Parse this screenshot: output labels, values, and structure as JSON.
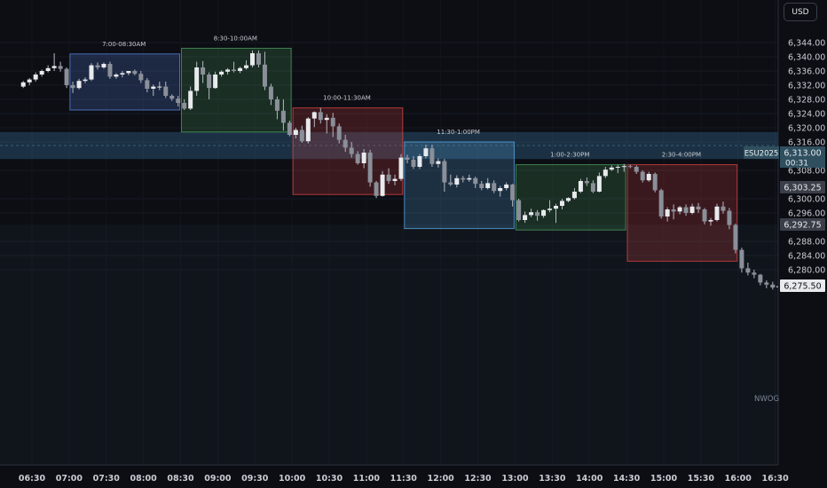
{
  "currency_button": "USD",
  "chart_data": {
    "type": "candlestick",
    "instrument": "ESU2025",
    "last_price": "6,313.00",
    "countdown": "00:31",
    "y_range": [
      6273,
      6348
    ],
    "y_ticks": [
      "6,344.00",
      "6,340.00",
      "6,336.00",
      "6,332.00",
      "6,328.00",
      "6,324.00",
      "6,320.00",
      "6,316.00",
      "6,308.00",
      "6,300.00",
      "6,296.00",
      "6,288.00",
      "6,284.00",
      "6,280.00"
    ],
    "x_ticks": [
      "06:30",
      "07:00",
      "07:30",
      "08:00",
      "08:30",
      "09:00",
      "09:30",
      "10:00",
      "10:30",
      "11:00",
      "11:30",
      "12:00",
      "12:30",
      "13:00",
      "13:30",
      "14:00",
      "14:30",
      "15:00",
      "15:30",
      "16:00",
      "16:30"
    ],
    "price_badges": [
      "6,303.25",
      "6,292.75",
      "6,275.50"
    ],
    "zone_label": "NWOG",
    "zone_range": [
      6311.2,
      6318.8
    ],
    "sessions": [
      {
        "label": "7:00-08:30AM",
        "start": "07:00",
        "end": "08:30",
        "high": 6340.8,
        "low": 6325.0,
        "color": "#5a88e8"
      },
      {
        "label": "8:30-10:00AM",
        "start": "08:30",
        "end": "10:00",
        "high": 6342.4,
        "low": 6318.8,
        "color": "#4fa35e"
      },
      {
        "label": "10:00-11:30AM",
        "start": "10:00",
        "end": "11:30",
        "high": 6325.6,
        "low": 6301.2,
        "color": "#e04545"
      },
      {
        "label": "11:30-1:00PM",
        "start": "11:30",
        "end": "13:00",
        "high": 6316.0,
        "low": 6291.6,
        "color": "#5aaee8"
      },
      {
        "label": "1:00-2:30PM",
        "start": "13:00",
        "end": "14:30",
        "high": 6309.6,
        "low": 6291.2,
        "color": "#4fa35e"
      },
      {
        "label": "2:30-4:00PM",
        "start": "14:30",
        "end": "16:00",
        "high": 6309.6,
        "low": 6282.4,
        "color": "#e04545"
      }
    ],
    "candles": [
      {
        "t": "06:23",
        "o": 6331.6,
        "h": 6333.2,
        "c": 6332.8,
        "l": 6331.2
      },
      {
        "t": "06:28",
        "o": 6332.8,
        "h": 6334.0,
        "c": 6333.6,
        "l": 6332.0
      },
      {
        "t": "06:33",
        "o": 6333.6,
        "h": 6335.6,
        "c": 6335.0,
        "l": 6333.0
      },
      {
        "t": "06:38",
        "o": 6335.0,
        "h": 6336.4,
        "c": 6336.0,
        "l": 6334.4
      },
      {
        "t": "06:43",
        "o": 6336.0,
        "h": 6337.6,
        "c": 6336.8,
        "l": 6335.6
      },
      {
        "t": "06:48",
        "o": 6336.8,
        "h": 6341.0,
        "c": 6337.4,
        "l": 6336.0
      },
      {
        "t": "06:53",
        "o": 6337.4,
        "h": 6338.6,
        "c": 6336.6,
        "l": 6335.8
      },
      {
        "t": "06:58",
        "o": 6336.6,
        "h": 6337.0,
        "c": 6332.0,
        "l": 6331.2
      },
      {
        "t": "07:03",
        "o": 6332.0,
        "h": 6333.0,
        "c": 6331.2,
        "l": 6329.8
      },
      {
        "t": "07:08",
        "o": 6331.2,
        "h": 6333.8,
        "c": 6333.2,
        "l": 6330.8
      },
      {
        "t": "07:13",
        "o": 6333.2,
        "h": 6334.2,
        "c": 6333.6,
        "l": 6332.6
      },
      {
        "t": "07:18",
        "o": 6333.6,
        "h": 6338.2,
        "c": 6337.6,
        "l": 6333.2
      },
      {
        "t": "07:23",
        "o": 6337.6,
        "h": 6338.4,
        "c": 6337.0,
        "l": 6336.4
      },
      {
        "t": "07:28",
        "o": 6337.0,
        "h": 6338.4,
        "c": 6338.0,
        "l": 6336.6
      },
      {
        "t": "07:33",
        "o": 6338.0,
        "h": 6338.6,
        "c": 6334.4,
        "l": 6333.8
      },
      {
        "t": "07:38",
        "o": 6334.4,
        "h": 6335.4,
        "c": 6335.0,
        "l": 6333.8
      },
      {
        "t": "07:43",
        "o": 6335.0,
        "h": 6336.0,
        "c": 6335.4,
        "l": 6334.2
      },
      {
        "t": "07:48",
        "o": 6335.4,
        "h": 6336.0,
        "c": 6336.0,
        "l": 6334.8
      },
      {
        "t": "07:53",
        "o": 6336.0,
        "h": 6336.4,
        "c": 6335.2,
        "l": 6334.8
      },
      {
        "t": "07:58",
        "o": 6335.2,
        "h": 6336.0,
        "c": 6333.4,
        "l": 6332.6
      },
      {
        "t": "08:03",
        "o": 6333.4,
        "h": 6334.0,
        "c": 6331.0,
        "l": 6330.0
      },
      {
        "t": "08:08",
        "o": 6331.0,
        "h": 6332.2,
        "c": 6331.6,
        "l": 6329.0
      },
      {
        "t": "08:13",
        "o": 6331.6,
        "h": 6333.0,
        "c": 6331.6,
        "l": 6330.6
      },
      {
        "t": "08:18",
        "o": 6331.6,
        "h": 6333.0,
        "c": 6329.0,
        "l": 6328.4
      },
      {
        "t": "08:23",
        "o": 6329.0,
        "h": 6329.4,
        "c": 6328.2,
        "l": 6327.6
      },
      {
        "t": "08:28",
        "o": 6328.2,
        "h": 6329.0,
        "c": 6327.0,
        "l": 6326.0
      },
      {
        "t": "08:33",
        "o": 6327.0,
        "h": 6328.0,
        "c": 6325.4,
        "l": 6325.0
      },
      {
        "t": "08:38",
        "o": 6325.4,
        "h": 6331.6,
        "c": 6330.4,
        "l": 6325.0
      },
      {
        "t": "08:43",
        "o": 6330.4,
        "h": 6338.6,
        "c": 6337.0,
        "l": 6329.0
      },
      {
        "t": "08:48",
        "o": 6337.0,
        "h": 6338.8,
        "c": 6335.0,
        "l": 6332.6
      },
      {
        "t": "08:53",
        "o": 6335.0,
        "h": 6335.6,
        "c": 6331.2,
        "l": 6328.0
      },
      {
        "t": "08:58",
        "o": 6331.2,
        "h": 6335.8,
        "c": 6335.0,
        "l": 6331.0
      },
      {
        "t": "09:03",
        "o": 6335.0,
        "h": 6336.2,
        "c": 6335.8,
        "l": 6334.4
      },
      {
        "t": "09:08",
        "o": 6335.8,
        "h": 6336.8,
        "c": 6336.4,
        "l": 6335.0
      },
      {
        "t": "09:13",
        "o": 6336.4,
        "h": 6338.6,
        "c": 6336.0,
        "l": 6335.6
      },
      {
        "t": "09:18",
        "o": 6336.0,
        "h": 6337.2,
        "c": 6336.8,
        "l": 6335.4
      },
      {
        "t": "09:23",
        "o": 6336.8,
        "h": 6339.0,
        "c": 6337.6,
        "l": 6336.4
      },
      {
        "t": "09:28",
        "o": 6337.6,
        "h": 6341.8,
        "c": 6341.0,
        "l": 6337.0
      },
      {
        "t": "09:33",
        "o": 6341.0,
        "h": 6341.8,
        "c": 6337.8,
        "l": 6337.0
      },
      {
        "t": "09:38",
        "o": 6337.8,
        "h": 6341.4,
        "c": 6331.6,
        "l": 6330.6
      },
      {
        "t": "09:43",
        "o": 6331.6,
        "h": 6332.4,
        "c": 6328.0,
        "l": 6326.4
      },
      {
        "t": "09:48",
        "o": 6328.0,
        "h": 6328.8,
        "c": 6324.8,
        "l": 6322.4
      },
      {
        "t": "09:53",
        "o": 6324.8,
        "h": 6328.0,
        "c": 6321.4,
        "l": 6319.2
      },
      {
        "t": "09:58",
        "o": 6321.4,
        "h": 6322.0,
        "c": 6318.0,
        "l": 6317.6
      },
      {
        "t": "10:03",
        "o": 6318.0,
        "h": 6320.0,
        "c": 6319.4,
        "l": 6317.0
      },
      {
        "t": "10:08",
        "o": 6319.4,
        "h": 6320.6,
        "c": 6316.2,
        "l": 6315.8
      },
      {
        "t": "10:13",
        "o": 6316.2,
        "h": 6323.0,
        "c": 6322.6,
        "l": 6315.6
      },
      {
        "t": "10:18",
        "o": 6322.6,
        "h": 6324.6,
        "c": 6324.4,
        "l": 6320.2
      },
      {
        "t": "10:23",
        "o": 6324.4,
        "h": 6325.6,
        "c": 6322.2,
        "l": 6321.2
      },
      {
        "t": "10:28",
        "o": 6322.2,
        "h": 6323.8,
        "c": 6322.8,
        "l": 6318.4
      },
      {
        "t": "10:33",
        "o": 6322.8,
        "h": 6324.2,
        "c": 6320.4,
        "l": 6317.4
      },
      {
        "t": "10:38",
        "o": 6320.4,
        "h": 6321.2,
        "c": 6316.6,
        "l": 6315.6
      },
      {
        "t": "10:43",
        "o": 6316.6,
        "h": 6318.0,
        "c": 6314.4,
        "l": 6313.2
      },
      {
        "t": "10:48",
        "o": 6314.4,
        "h": 6316.0,
        "c": 6312.6,
        "l": 6311.6
      },
      {
        "t": "10:53",
        "o": 6312.6,
        "h": 6313.4,
        "c": 6310.0,
        "l": 6309.6
      },
      {
        "t": "10:58",
        "o": 6310.0,
        "h": 6314.0,
        "c": 6313.0,
        "l": 6308.6
      },
      {
        "t": "11:03",
        "o": 6313.0,
        "h": 6313.8,
        "c": 6304.6,
        "l": 6303.4
      },
      {
        "t": "11:08",
        "o": 6304.6,
        "h": 6305.0,
        "c": 6300.8,
        "l": 6300.2
      },
      {
        "t": "11:13",
        "o": 6300.8,
        "h": 6307.8,
        "c": 6306.8,
        "l": 6300.6
      },
      {
        "t": "11:18",
        "o": 6306.8,
        "h": 6308.6,
        "c": 6305.0,
        "l": 6304.2
      },
      {
        "t": "11:23",
        "o": 6305.0,
        "h": 6306.8,
        "c": 6305.6,
        "l": 6303.8
      },
      {
        "t": "11:28",
        "o": 6305.6,
        "h": 6312.6,
        "c": 6311.6,
        "l": 6305.0
      },
      {
        "t": "11:33",
        "o": 6311.6,
        "h": 6312.4,
        "c": 6311.0,
        "l": 6310.0
      },
      {
        "t": "11:38",
        "o": 6311.0,
        "h": 6312.0,
        "c": 6309.0,
        "l": 6308.4
      },
      {
        "t": "11:43",
        "o": 6309.0,
        "h": 6312.6,
        "c": 6312.0,
        "l": 6308.4
      },
      {
        "t": "11:48",
        "o": 6312.0,
        "h": 6315.2,
        "c": 6314.2,
        "l": 6311.4
      },
      {
        "t": "11:53",
        "o": 6314.2,
        "h": 6315.2,
        "c": 6309.8,
        "l": 6309.0
      },
      {
        "t": "11:58",
        "o": 6309.8,
        "h": 6311.4,
        "c": 6310.6,
        "l": 6308.8
      },
      {
        "t": "12:03",
        "o": 6310.6,
        "h": 6311.2,
        "c": 6304.6,
        "l": 6302.0
      },
      {
        "t": "12:08",
        "o": 6304.6,
        "h": 6306.8,
        "c": 6304.0,
        "l": 6303.6
      },
      {
        "t": "12:13",
        "o": 6304.0,
        "h": 6306.6,
        "c": 6305.8,
        "l": 6303.2
      },
      {
        "t": "12:18",
        "o": 6305.8,
        "h": 6306.4,
        "c": 6305.4,
        "l": 6304.6
      },
      {
        "t": "12:23",
        "o": 6305.4,
        "h": 6306.8,
        "c": 6305.8,
        "l": 6304.8
      },
      {
        "t": "12:28",
        "o": 6305.8,
        "h": 6306.2,
        "c": 6304.2,
        "l": 6303.0
      },
      {
        "t": "12:33",
        "o": 6304.2,
        "h": 6305.0,
        "c": 6303.0,
        "l": 6302.4
      },
      {
        "t": "12:38",
        "o": 6303.0,
        "h": 6305.8,
        "c": 6304.4,
        "l": 6302.6
      },
      {
        "t": "12:43",
        "o": 6304.4,
        "h": 6305.2,
        "c": 6302.2,
        "l": 6301.6
      },
      {
        "t": "12:48",
        "o": 6302.2,
        "h": 6303.6,
        "c": 6303.0,
        "l": 6300.6
      },
      {
        "t": "12:53",
        "o": 6303.0,
        "h": 6304.6,
        "c": 6304.0,
        "l": 6302.4
      },
      {
        "t": "12:58",
        "o": 6304.0,
        "h": 6304.2,
        "c": 6299.6,
        "l": 6297.8
      },
      {
        "t": "13:03",
        "o": 6299.6,
        "h": 6300.0,
        "c": 6294.0,
        "l": 6293.6
      },
      {
        "t": "13:08",
        "o": 6294.0,
        "h": 6296.4,
        "c": 6295.4,
        "l": 6293.2
      },
      {
        "t": "13:13",
        "o": 6295.4,
        "h": 6297.2,
        "c": 6296.2,
        "l": 6294.8
      },
      {
        "t": "13:18",
        "o": 6296.2,
        "h": 6296.8,
        "c": 6295.2,
        "l": 6293.8
      },
      {
        "t": "13:23",
        "o": 6295.2,
        "h": 6297.0,
        "c": 6296.8,
        "l": 6294.6
      },
      {
        "t": "13:28",
        "o": 6296.8,
        "h": 6299.6,
        "c": 6297.2,
        "l": 6296.2
      },
      {
        "t": "13:33",
        "o": 6297.2,
        "h": 6298.6,
        "c": 6298.0,
        "l": 6293.2
      },
      {
        "t": "13:38",
        "o": 6298.0,
        "h": 6300.0,
        "c": 6299.4,
        "l": 6297.0
      },
      {
        "t": "13:43",
        "o": 6299.4,
        "h": 6300.4,
        "c": 6300.2,
        "l": 6299.0
      },
      {
        "t": "13:48",
        "o": 6300.2,
        "h": 6303.0,
        "c": 6302.0,
        "l": 6299.8
      },
      {
        "t": "13:53",
        "o": 6302.0,
        "h": 6305.6,
        "c": 6305.0,
        "l": 6301.6
      },
      {
        "t": "13:58",
        "o": 6305.0,
        "h": 6306.0,
        "c": 6304.4,
        "l": 6303.6
      },
      {
        "t": "14:03",
        "o": 6304.4,
        "h": 6305.2,
        "c": 6302.0,
        "l": 6301.6
      },
      {
        "t": "14:08",
        "o": 6302.0,
        "h": 6307.4,
        "c": 6306.4,
        "l": 6301.8
      },
      {
        "t": "14:13",
        "o": 6306.4,
        "h": 6309.0,
        "c": 6308.2,
        "l": 6305.8
      },
      {
        "t": "14:18",
        "o": 6308.2,
        "h": 6309.4,
        "c": 6308.8,
        "l": 6307.8
      },
      {
        "t": "14:23",
        "o": 6308.8,
        "h": 6309.6,
        "c": 6309.0,
        "l": 6307.2
      },
      {
        "t": "14:28",
        "o": 6309.0,
        "h": 6309.8,
        "c": 6309.2,
        "l": 6307.6
      },
      {
        "t": "14:33",
        "o": 6309.2,
        "h": 6309.6,
        "c": 6309.0,
        "l": 6308.6
      },
      {
        "t": "14:38",
        "o": 6309.0,
        "h": 6309.4,
        "c": 6307.6,
        "l": 6307.0
      },
      {
        "t": "14:43",
        "o": 6307.6,
        "h": 6308.0,
        "c": 6305.2,
        "l": 6304.6
      },
      {
        "t": "14:48",
        "o": 6305.2,
        "h": 6307.6,
        "c": 6307.0,
        "l": 6304.8
      },
      {
        "t": "14:53",
        "o": 6307.0,
        "h": 6307.4,
        "c": 6302.4,
        "l": 6301.8
      },
      {
        "t": "14:58",
        "o": 6302.4,
        "h": 6302.8,
        "c": 6295.0,
        "l": 6294.4
      },
      {
        "t": "15:03",
        "o": 6295.0,
        "h": 6297.6,
        "c": 6297.0,
        "l": 6293.6
      },
      {
        "t": "15:08",
        "o": 6297.0,
        "h": 6298.4,
        "c": 6296.4,
        "l": 6294.2
      },
      {
        "t": "15:13",
        "o": 6296.4,
        "h": 6298.0,
        "c": 6297.6,
        "l": 6295.6
      },
      {
        "t": "15:18",
        "o": 6297.6,
        "h": 6298.4,
        "c": 6296.0,
        "l": 6295.2
      },
      {
        "t": "15:23",
        "o": 6296.0,
        "h": 6298.6,
        "c": 6297.8,
        "l": 6295.6
      },
      {
        "t": "15:28",
        "o": 6297.8,
        "h": 6298.8,
        "c": 6297.0,
        "l": 6296.0
      },
      {
        "t": "15:33",
        "o": 6297.0,
        "h": 6297.4,
        "c": 6293.6,
        "l": 6292.8
      },
      {
        "t": "15:38",
        "o": 6293.6,
        "h": 6294.6,
        "c": 6294.0,
        "l": 6292.4
      },
      {
        "t": "15:43",
        "o": 6294.0,
        "h": 6298.6,
        "c": 6297.8,
        "l": 6293.6
      },
      {
        "t": "15:48",
        "o": 6297.8,
        "h": 6299.2,
        "c": 6296.6,
        "l": 6295.8
      },
      {
        "t": "15:53",
        "o": 6296.6,
        "h": 6297.4,
        "c": 6292.6,
        "l": 6291.4
      },
      {
        "t": "15:58",
        "o": 6292.6,
        "h": 6293.0,
        "c": 6285.6,
        "l": 6284.6
      },
      {
        "t": "16:03",
        "o": 6285.6,
        "h": 6286.2,
        "c": 6280.4,
        "l": 6279.2
      },
      {
        "t": "16:08",
        "o": 6280.4,
        "h": 6282.0,
        "c": 6279.2,
        "l": 6278.4
      },
      {
        "t": "16:13",
        "o": 6279.2,
        "h": 6280.0,
        "c": 6278.6,
        "l": 6277.6
      },
      {
        "t": "16:18",
        "o": 6278.6,
        "h": 6278.8,
        "c": 6276.4,
        "l": 6275.6
      },
      {
        "t": "16:23",
        "o": 6276.4,
        "h": 6277.0,
        "c": 6275.8,
        "l": 6274.8
      },
      {
        "t": "16:28",
        "o": 6275.8,
        "h": 6276.6,
        "c": 6275.0,
        "l": 6274.4
      },
      {
        "t": "16:33",
        "o": 6275.0,
        "h": 6276.4,
        "c": 6275.4,
        "l": 6273.6
      }
    ]
  }
}
